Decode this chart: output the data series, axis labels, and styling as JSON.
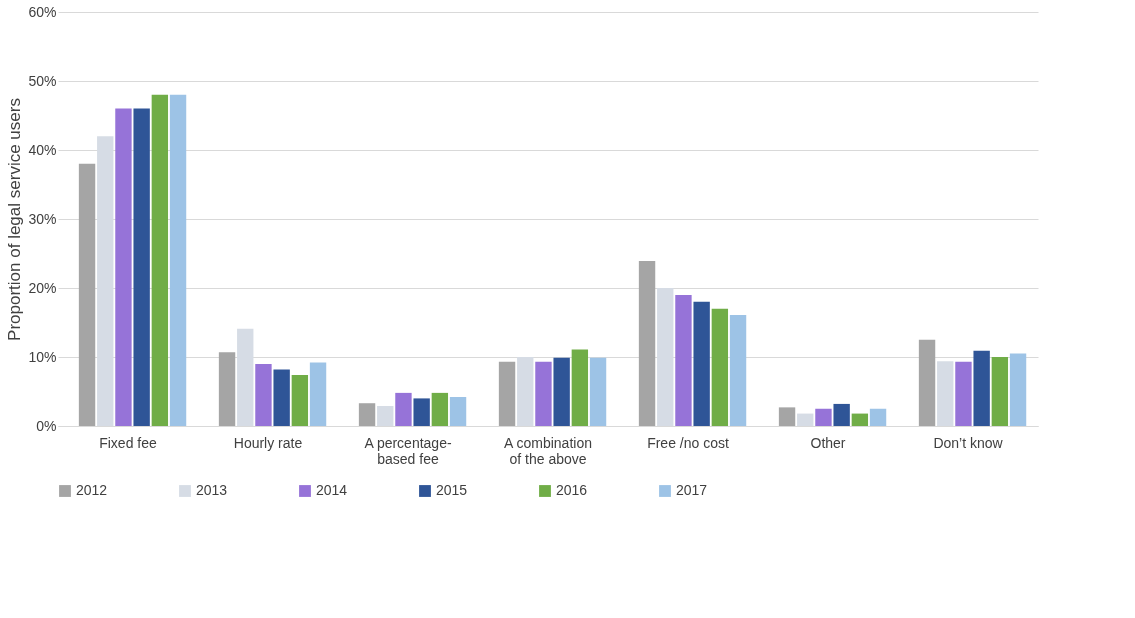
{
  "chart_data": {
    "type": "bar",
    "ylabel": "Proportion of legal service users",
    "categories": [
      "Fixed fee",
      "Hourly rate",
      "A percentage-based fee",
      "A combination of the above",
      "Free /no cost",
      "Other",
      "Don’t know"
    ],
    "series": [
      {
        "name": "2012",
        "color": "#a5a5a5",
        "values": [
          38,
          10.7,
          3.3,
          9.3,
          23.9,
          2.7,
          12.5
        ]
      },
      {
        "name": "2013",
        "color": "#d6dce5",
        "values": [
          42,
          14.1,
          2.9,
          10,
          20,
          1.8,
          9.4
        ]
      },
      {
        "name": "2014",
        "color": "#9673d8",
        "values": [
          46,
          9,
          4.8,
          9.3,
          19,
          2.5,
          9.3
        ]
      },
      {
        "name": "2015",
        "color": "#2f5597",
        "values": [
          46,
          8.2,
          4,
          9.9,
          18,
          3.2,
          10.9
        ]
      },
      {
        "name": "2016",
        "color": "#70ad47",
        "values": [
          48,
          7.4,
          4.8,
          11.1,
          17,
          1.8,
          10
        ]
      },
      {
        "name": "2017",
        "color": "#9dc3e6",
        "values": [
          48,
          9.2,
          4.2,
          9.9,
          16.1,
          2.5,
          10.5
        ]
      }
    ],
    "ylim": [
      0,
      60
    ],
    "yticks": [
      {
        "value": 0,
        "label": "0%"
      },
      {
        "value": 10,
        "label": "10%"
      },
      {
        "value": 20,
        "label": "20%"
      },
      {
        "value": 30,
        "label": "30%"
      },
      {
        "value": 40,
        "label": "40%"
      },
      {
        "value": 50,
        "label": "50%"
      },
      {
        "value": 60,
        "label": "60%"
      }
    ],
    "grid": "y",
    "legend": "bottom"
  }
}
